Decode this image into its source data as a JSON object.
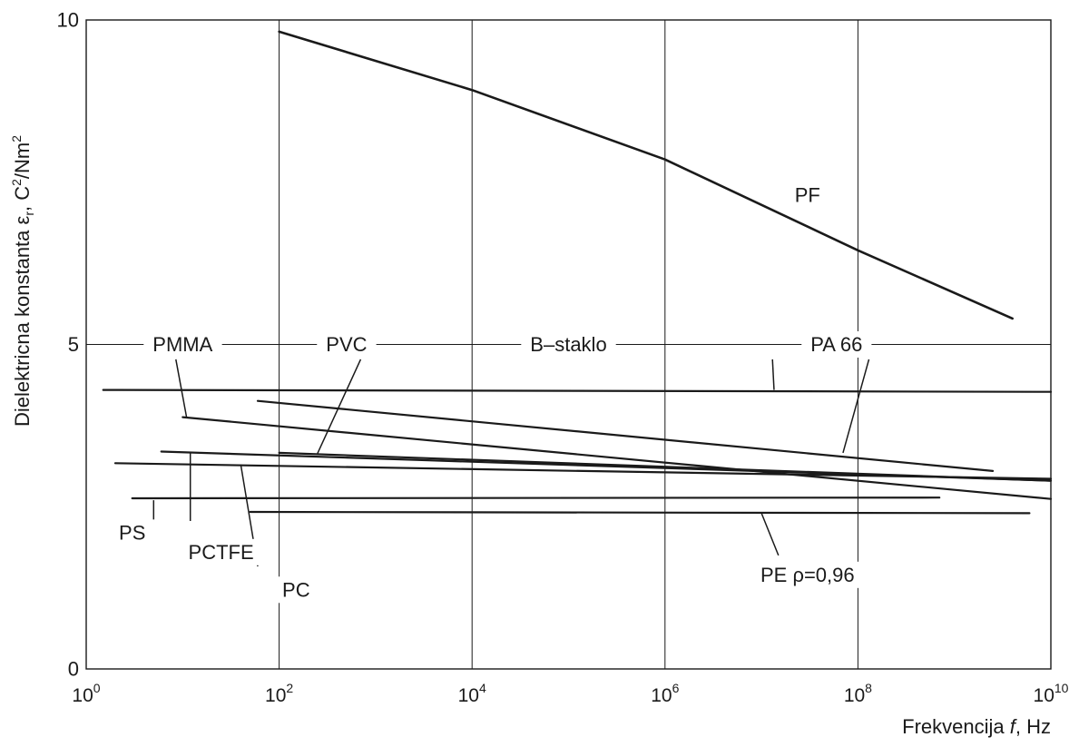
{
  "chart_data": {
    "type": "line",
    "title": "",
    "xlabel": {
      "prefix": "Frekvencija ",
      "italic": "f",
      "suffix": ", Hz"
    },
    "ylabel": {
      "prefix": "Dielektricna konstanta ε",
      "sub": "r",
      "mid": ", C",
      "sup": "2",
      "tail": "/Nm",
      "sup2": "2"
    },
    "x_scale": "log10",
    "xlim": [
      1,
      10000000000
    ],
    "ylim": [
      0,
      10
    ],
    "x_ticks": [
      {
        "value": 1,
        "base": "10",
        "exp": "0"
      },
      {
        "value": 100,
        "base": "10",
        "exp": "2"
      },
      {
        "value": 10000,
        "base": "10",
        "exp": "4"
      },
      {
        "value": 1000000,
        "base": "10",
        "exp": "6"
      },
      {
        "value": 100000000,
        "base": "10",
        "exp": "8"
      },
      {
        "value": 10000000000,
        "base": "10",
        "exp": "10"
      }
    ],
    "y_ticks": [
      {
        "value": 0,
        "label": "0"
      },
      {
        "value": 5,
        "label": "5"
      },
      {
        "value": 10,
        "label": "10"
      }
    ],
    "grid": "vertical lines at 10^2, 10^4, 10^6, 10^8; horizontal line at 5",
    "series": [
      {
        "name": "PF",
        "x": [
          100,
          10000,
          1000000,
          100000000,
          4000000000
        ],
        "y": [
          9.82,
          8.92,
          7.85,
          6.45,
          5.4
        ]
      },
      {
        "name": "B–staklo",
        "x": [
          1.5,
          10000000000
        ],
        "y": [
          4.3,
          4.27
        ]
      },
      {
        "name": "PMMA",
        "x": [
          10,
          10000000000
        ],
        "y": [
          3.88,
          2.62
        ]
      },
      {
        "name": "PA 66",
        "x": [
          60,
          2500000000
        ],
        "y": [
          4.13,
          3.05
        ]
      },
      {
        "name": "PVC",
        "x": [
          100,
          10000000000
        ],
        "y": [
          3.33,
          2.9
        ]
      },
      {
        "name": "PCTFE",
        "x": [
          6,
          10000000000
        ],
        "y": [
          3.35,
          2.9
        ]
      },
      {
        "name": "PC",
        "x": [
          2,
          10000000000
        ],
        "y": [
          3.17,
          2.93
        ]
      },
      {
        "name": "PS",
        "x": [
          3,
          700000000
        ],
        "y": [
          2.63,
          2.64
        ]
      },
      {
        "name": "PE ρ=0,96",
        "x": [
          50,
          6000000000
        ],
        "y": [
          2.42,
          2.4
        ]
      }
    ],
    "legend": "none",
    "annotations": [
      {
        "text": "PF",
        "x": 30000000,
        "y": 7.3
      },
      {
        "text": "PMMA",
        "x": 10,
        "y": 5.0
      },
      {
        "text": "PVC",
        "x": 500,
        "y": 5.0
      },
      {
        "text": "B–staklo",
        "x": 100000,
        "y": 5.0
      },
      {
        "text": "PA 66",
        "x": 60000000,
        "y": 5.0
      },
      {
        "text": "PS",
        "x": 3,
        "y": 2.1
      },
      {
        "text": "PCTFE",
        "x": 25,
        "y": 1.8
      },
      {
        "text": "PC",
        "x": 150,
        "y": 1.22
      },
      {
        "text": "PE ρ=0,96",
        "x": 30000000,
        "y": 1.45
      }
    ],
    "leader_lines": [
      {
        "label": "PMMA",
        "from": [
          8.5,
          4.77
        ],
        "to": [
          11,
          3.87
        ]
      },
      {
        "label": "PVC",
        "from": [
          700,
          4.77
        ],
        "to": [
          250,
          3.32
        ]
      },
      {
        "label": "B–staklo",
        "from": [
          13000000,
          4.77
        ],
        "to": [
          13500000,
          4.3
        ]
      },
      {
        "label": "PA 66",
        "from": [
          130000000,
          4.77
        ],
        "to": [
          70000000,
          3.33
        ]
      },
      {
        "label": "PS",
        "from": [
          5,
          2.28
        ],
        "to": [
          5,
          2.6
        ]
      },
      {
        "label": "PCTFE",
        "from": [
          12,
          2.28
        ],
        "to": [
          12,
          3.33
        ]
      },
      {
        "label": "PC",
        "from": [
          60,
          1.58
        ],
        "to": [
          40,
          3.15
        ]
      },
      {
        "label": "PE ρ=0,96",
        "from": [
          15000000,
          1.75
        ],
        "to": [
          10000000,
          2.4
        ]
      }
    ]
  }
}
